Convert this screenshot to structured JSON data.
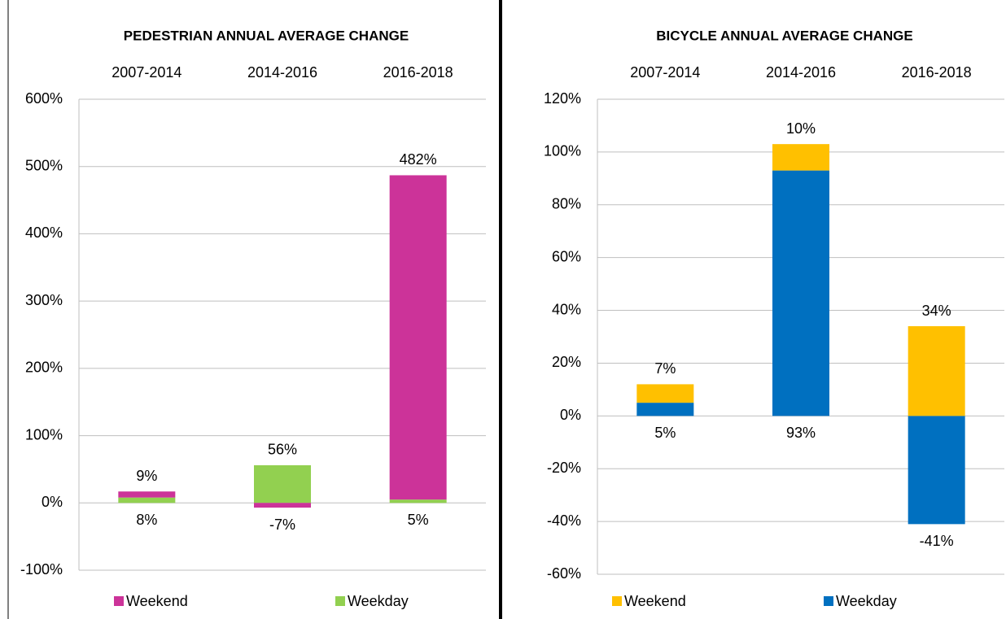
{
  "chart_data": [
    {
      "type": "stacked_bar",
      "title": "PEDESTRIAN ANNUAL AVERAGE CHANGE",
      "categories": [
        "2007-2014",
        "2014-2016",
        "2016-2018"
      ],
      "series": [
        {
          "name": "Weekday",
          "color": "#92d050",
          "values": [
            8,
            56,
            5
          ],
          "value_labels": [
            "8%",
            "56%",
            "5%"
          ]
        },
        {
          "name": "Weekend",
          "color": "#cc3399",
          "values": [
            9,
            -7,
            482
          ],
          "value_labels": [
            "9%",
            "-7%",
            "482%"
          ]
        }
      ],
      "ylim": [
        -100,
        600
      ],
      "yticks": [
        {
          "value": -100,
          "label": "-100%"
        },
        {
          "value": 0,
          "label": "0%"
        },
        {
          "value": 100,
          "label": "100%"
        },
        {
          "value": 200,
          "label": "200%"
        },
        {
          "value": 300,
          "label": "300%"
        },
        {
          "value": 400,
          "label": "400%"
        },
        {
          "value": 500,
          "label": "500%"
        },
        {
          "value": 600,
          "label": "600%"
        }
      ],
      "grid": true
    },
    {
      "type": "stacked_bar",
      "title": "BICYCLE  ANNUAL AVERAGE CHANGE",
      "categories": [
        "2007-2014",
        "2014-2016",
        "2016-2018"
      ],
      "series": [
        {
          "name": "Weekday",
          "color": "#0070c0",
          "values": [
            5,
            93,
            -41
          ],
          "value_labels": [
            "5%",
            "93%",
            "-41%"
          ]
        },
        {
          "name": "Weekend",
          "color": "#ffc000",
          "values": [
            7,
            10,
            34
          ],
          "value_labels": [
            "7%",
            "10%",
            "34%"
          ]
        }
      ],
      "ylim": [
        -60,
        120
      ],
      "yticks": [
        {
          "value": -60,
          "label": "-60%"
        },
        {
          "value": -40,
          "label": "-40%"
        },
        {
          "value": -20,
          "label": "-20%"
        },
        {
          "value": 0,
          "label": "0%"
        },
        {
          "value": 20,
          "label": "20%"
        },
        {
          "value": 40,
          "label": "40%"
        },
        {
          "value": 60,
          "label": "60%"
        },
        {
          "value": 80,
          "label": "80%"
        },
        {
          "value": 100,
          "label": "100%"
        },
        {
          "value": 120,
          "label": "120%"
        }
      ],
      "grid": true
    }
  ]
}
